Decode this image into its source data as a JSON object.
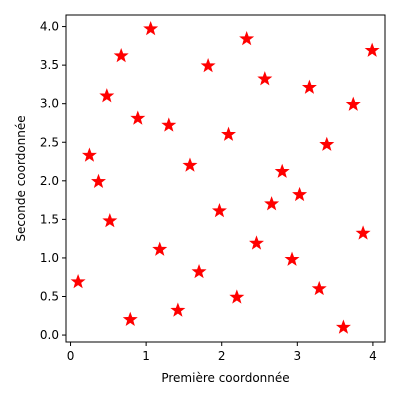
{
  "chart_data": {
    "type": "scatter",
    "title": "",
    "xlabel": "Première coordonnée",
    "ylabel": "Seconde coordonnée",
    "xlim": [
      -0.06,
      4.16
    ],
    "ylim": [
      -0.09,
      4.15
    ],
    "xticks": [
      0,
      1,
      2,
      3,
      4
    ],
    "xtick_labels": [
      "0",
      "1",
      "2",
      "3",
      "4"
    ],
    "yticks": [
      0.0,
      0.5,
      1.0,
      1.5,
      2.0,
      2.5,
      3.0,
      3.5,
      4.0
    ],
    "ytick_labels": [
      "0.0",
      "0.5",
      "1.0",
      "1.5",
      "2.0",
      "2.5",
      "3.0",
      "3.5",
      "4.0"
    ],
    "grid": false,
    "marker": "star",
    "marker_color": "#ff0000",
    "series": [
      {
        "x": [
          0.1,
          0.25,
          0.37,
          0.48,
          0.52,
          0.67,
          0.79,
          0.89,
          1.06,
          1.18,
          1.3,
          1.42,
          1.58,
          1.7,
          1.82,
          1.97,
          2.09,
          2.2,
          2.33,
          2.46,
          2.57,
          2.66,
          2.8,
          2.93,
          3.03,
          3.16,
          3.29,
          3.39,
          3.61,
          3.74,
          3.87,
          3.99
        ],
        "y": [
          0.69,
          2.33,
          1.99,
          3.1,
          1.48,
          3.62,
          0.2,
          2.81,
          3.97,
          1.11,
          2.72,
          0.32,
          2.2,
          0.82,
          3.49,
          1.61,
          2.6,
          0.49,
          3.84,
          1.19,
          3.32,
          1.7,
          2.12,
          0.98,
          1.82,
          3.21,
          0.6,
          2.47,
          0.1,
          2.99,
          1.32,
          3.69
        ]
      }
    ]
  }
}
